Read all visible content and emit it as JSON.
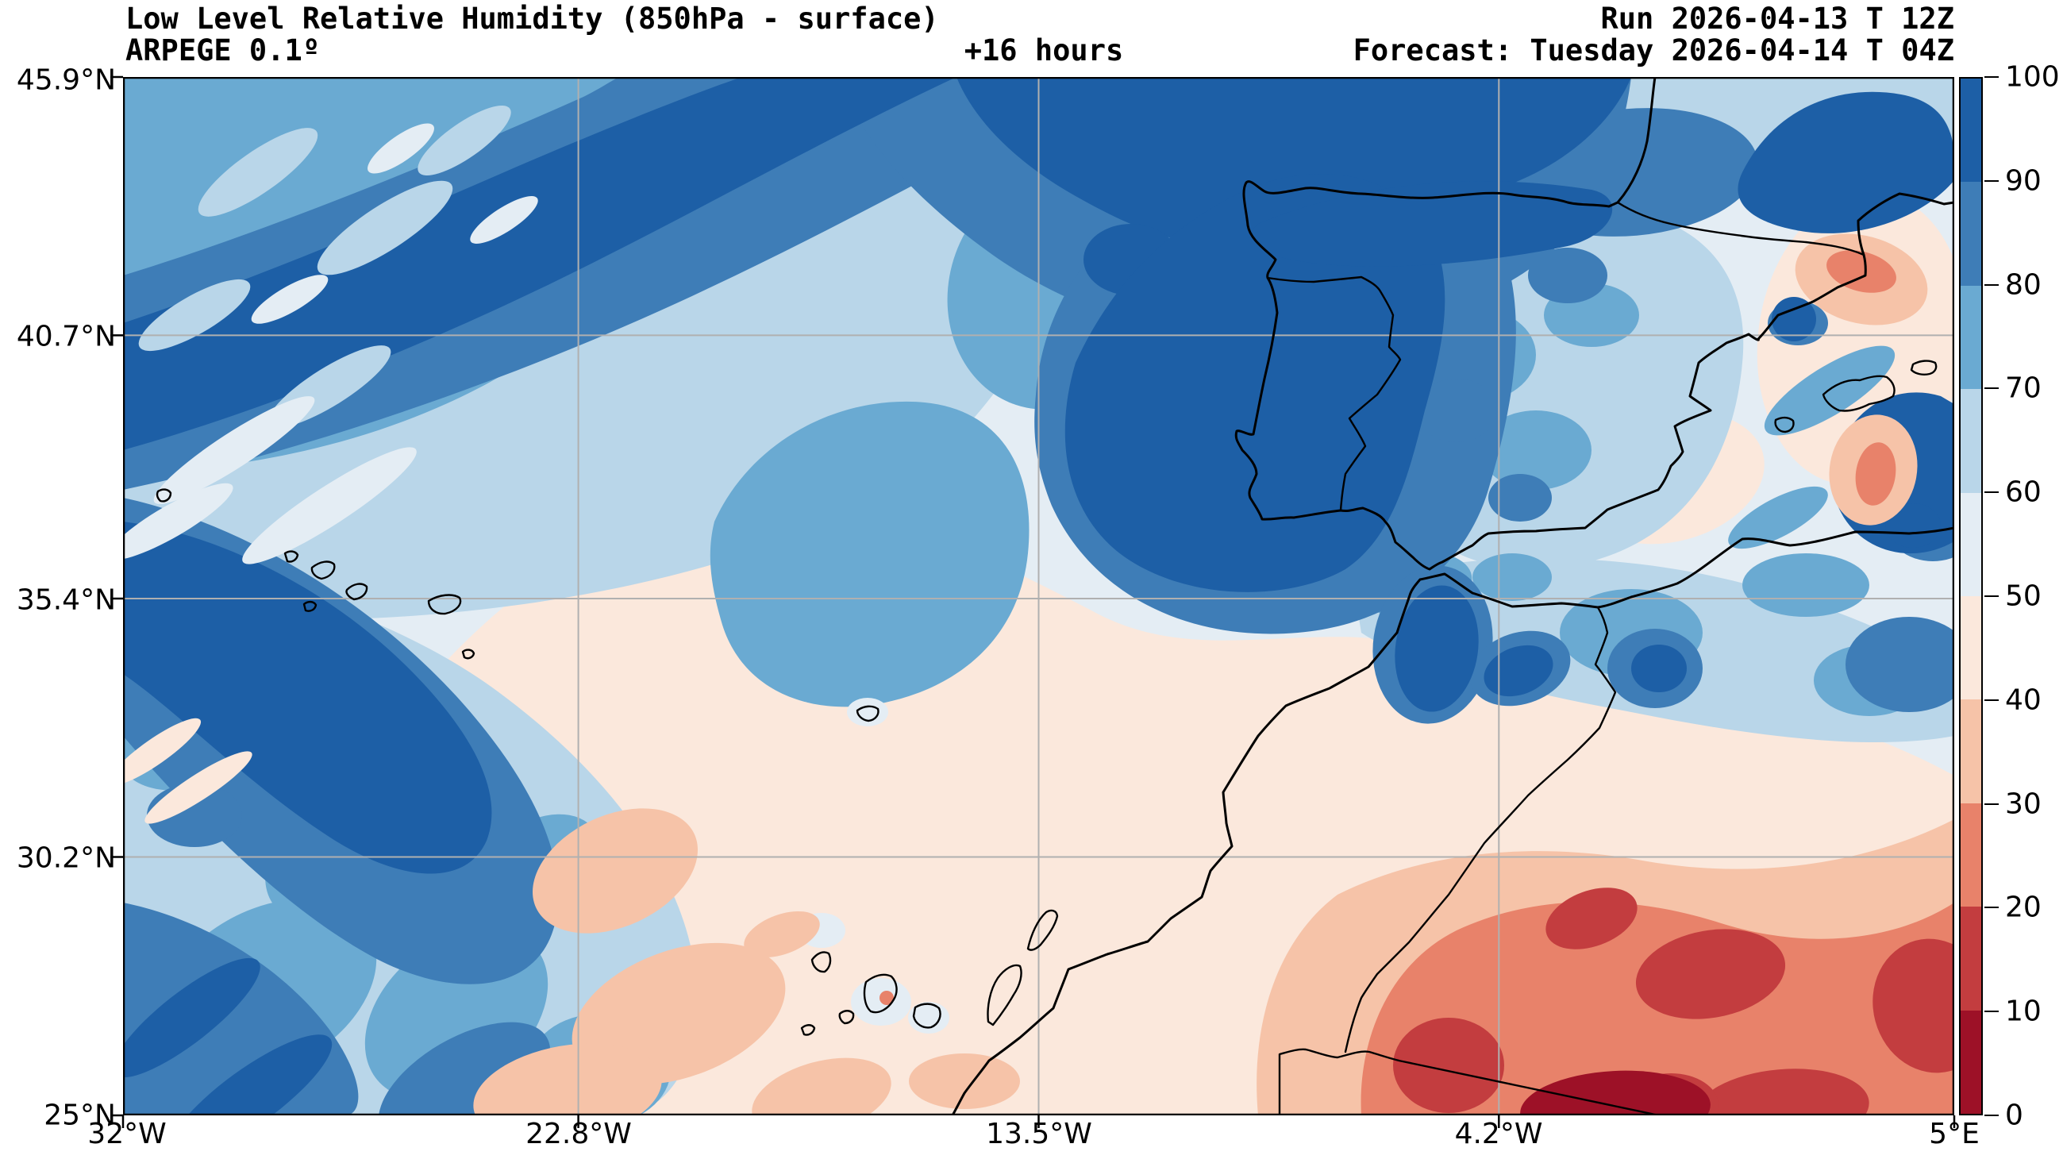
{
  "header": {
    "title": "Low Level Relative Humidity (850hPa - surface)",
    "model": "ARPEGE 0.1º",
    "lead_time": "+16 hours",
    "run_label": "Run 2026-04-13 T 12Z",
    "forecast_label": "Forecast: Tuesday 2026-04-14 T 04Z"
  },
  "chart_data": {
    "type": "heatmap",
    "title": "Low Level Relative Humidity (850hPa - surface)",
    "variable": "relative humidity",
    "units": "%",
    "model": "ARPEGE 0.1º",
    "lead_time_hours": 16,
    "x_ticks": [
      "32°W",
      "22.8°W",
      "13.5°W",
      "4.2°W",
      "5°E"
    ],
    "y_ticks": [
      "45.9°N",
      "40.7°N",
      "35.4°N",
      "30.2°N",
      "25°N"
    ],
    "lon_range_deg": [
      -32,
      5
    ],
    "lat_range_deg": [
      25,
      45.9
    ],
    "grid_on": true,
    "colorbar": {
      "min": 0,
      "max": 100,
      "tick_labels": [
        "100",
        "90",
        "80",
        "70",
        "60",
        "50",
        "40",
        "30",
        "20",
        "10",
        "0"
      ],
      "levels": [
        {
          "range": "90-100",
          "color": "#1d5fa6"
        },
        {
          "range": "80-90",
          "color": "#3e7db7"
        },
        {
          "range": "70-80",
          "color": "#6aaad2"
        },
        {
          "range": "60-70",
          "color": "#b9d6e9"
        },
        {
          "range": "50-60",
          "color": "#e4edf4"
        },
        {
          "range": "40-50",
          "color": "#fbe8dc"
        },
        {
          "range": "30-40",
          "color": "#f6c3a8"
        },
        {
          "range": "20-30",
          "color": "#e8826a"
        },
        {
          "range": "10-20",
          "color": "#c33d3f"
        },
        {
          "range": "0-10",
          "color": "#9d1127"
        }
      ]
    },
    "field_summary": [
      {
        "area": "NW Atlantic diagonal moist bands",
        "rh_percent": "80-100"
      },
      {
        "area": "Top-centre Atlantic / Bay of Biscay",
        "rh_percent": "80-100"
      },
      {
        "area": "Portugal and western Spain",
        "rh_percent": "90-100"
      },
      {
        "area": "Eastern Spain / Ebro valley",
        "rh_percent": "20-50"
      },
      {
        "area": "Central subtropical Atlantic dry tongue",
        "rh_percent": "40-60"
      },
      {
        "area": "Canary Islands area",
        "rh_percent": "40-50"
      },
      {
        "area": "Northern Morocco / Rif and Atlas",
        "rh_percent": "70-100"
      },
      {
        "area": "Southern Morocco and Algerian Sahara",
        "rh_percent": "10-40"
      },
      {
        "area": "Deep Sahara near bottom edge",
        "rh_percent": "0-10"
      },
      {
        "area": "Western Mediterranean / Balearics",
        "rh_percent": "50-80"
      }
    ]
  }
}
